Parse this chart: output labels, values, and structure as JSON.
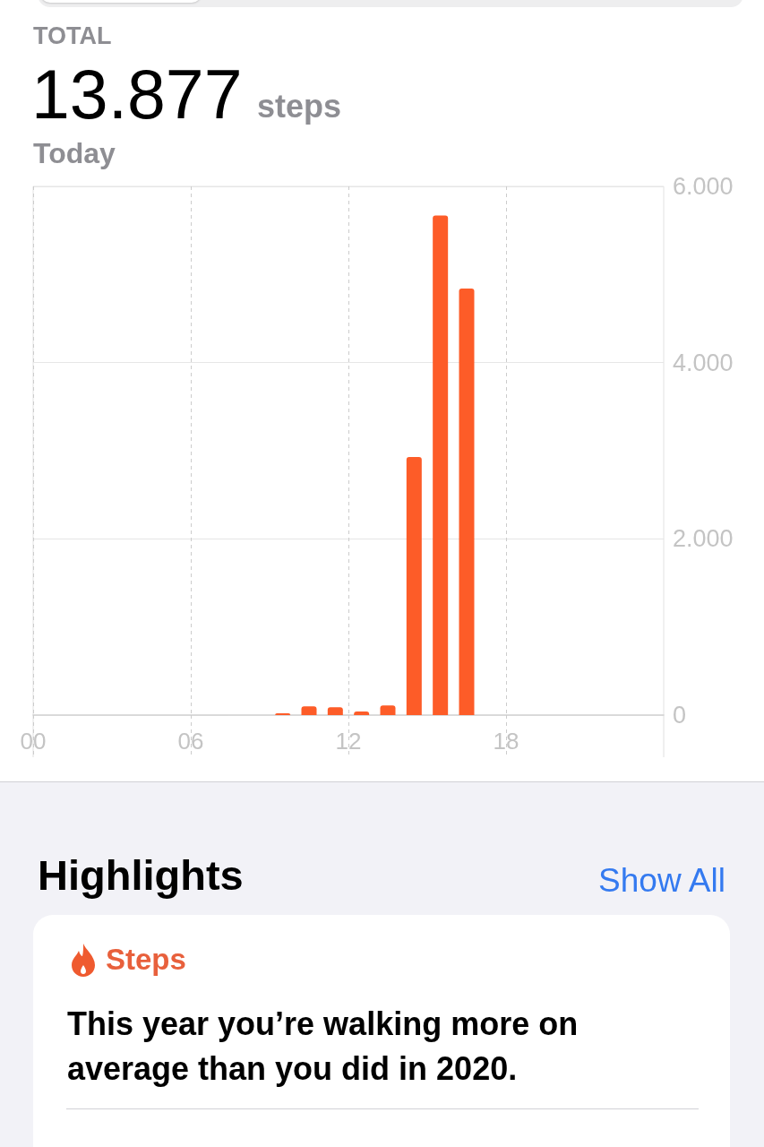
{
  "chart_data": {
    "type": "bar",
    "annotations": [
      "TOTAL",
      "13.877",
      "steps",
      "Today",
      "Highlights",
      "Show All",
      "Steps",
      "This year you’re walking more on average than you did in 2020."
    ],
    "x": [
      9.5,
      10.5,
      11.5,
      12.5,
      13.5,
      14.5,
      15.5,
      16.5
    ],
    "values": [
      20,
      100,
      90,
      40,
      110,
      2930,
      5670,
      4840
    ],
    "color": "#fd5c28",
    "xlim": [
      0,
      24
    ],
    "xticks": [
      {
        "value": 0,
        "label": "00"
      },
      {
        "value": 6,
        "label": "06"
      },
      {
        "value": 12,
        "label": "12"
      },
      {
        "value": 18,
        "label": "18"
      }
    ],
    "ylim": [
      0,
      6000
    ],
    "yticks": [
      0,
      {
        "value": 2000,
        "label": "2.000"
      },
      {
        "value": 4000,
        "label": "4.000"
      },
      {
        "value": 6000,
        "label": "6.000"
      }
    ],
    "grid": true
  }
}
